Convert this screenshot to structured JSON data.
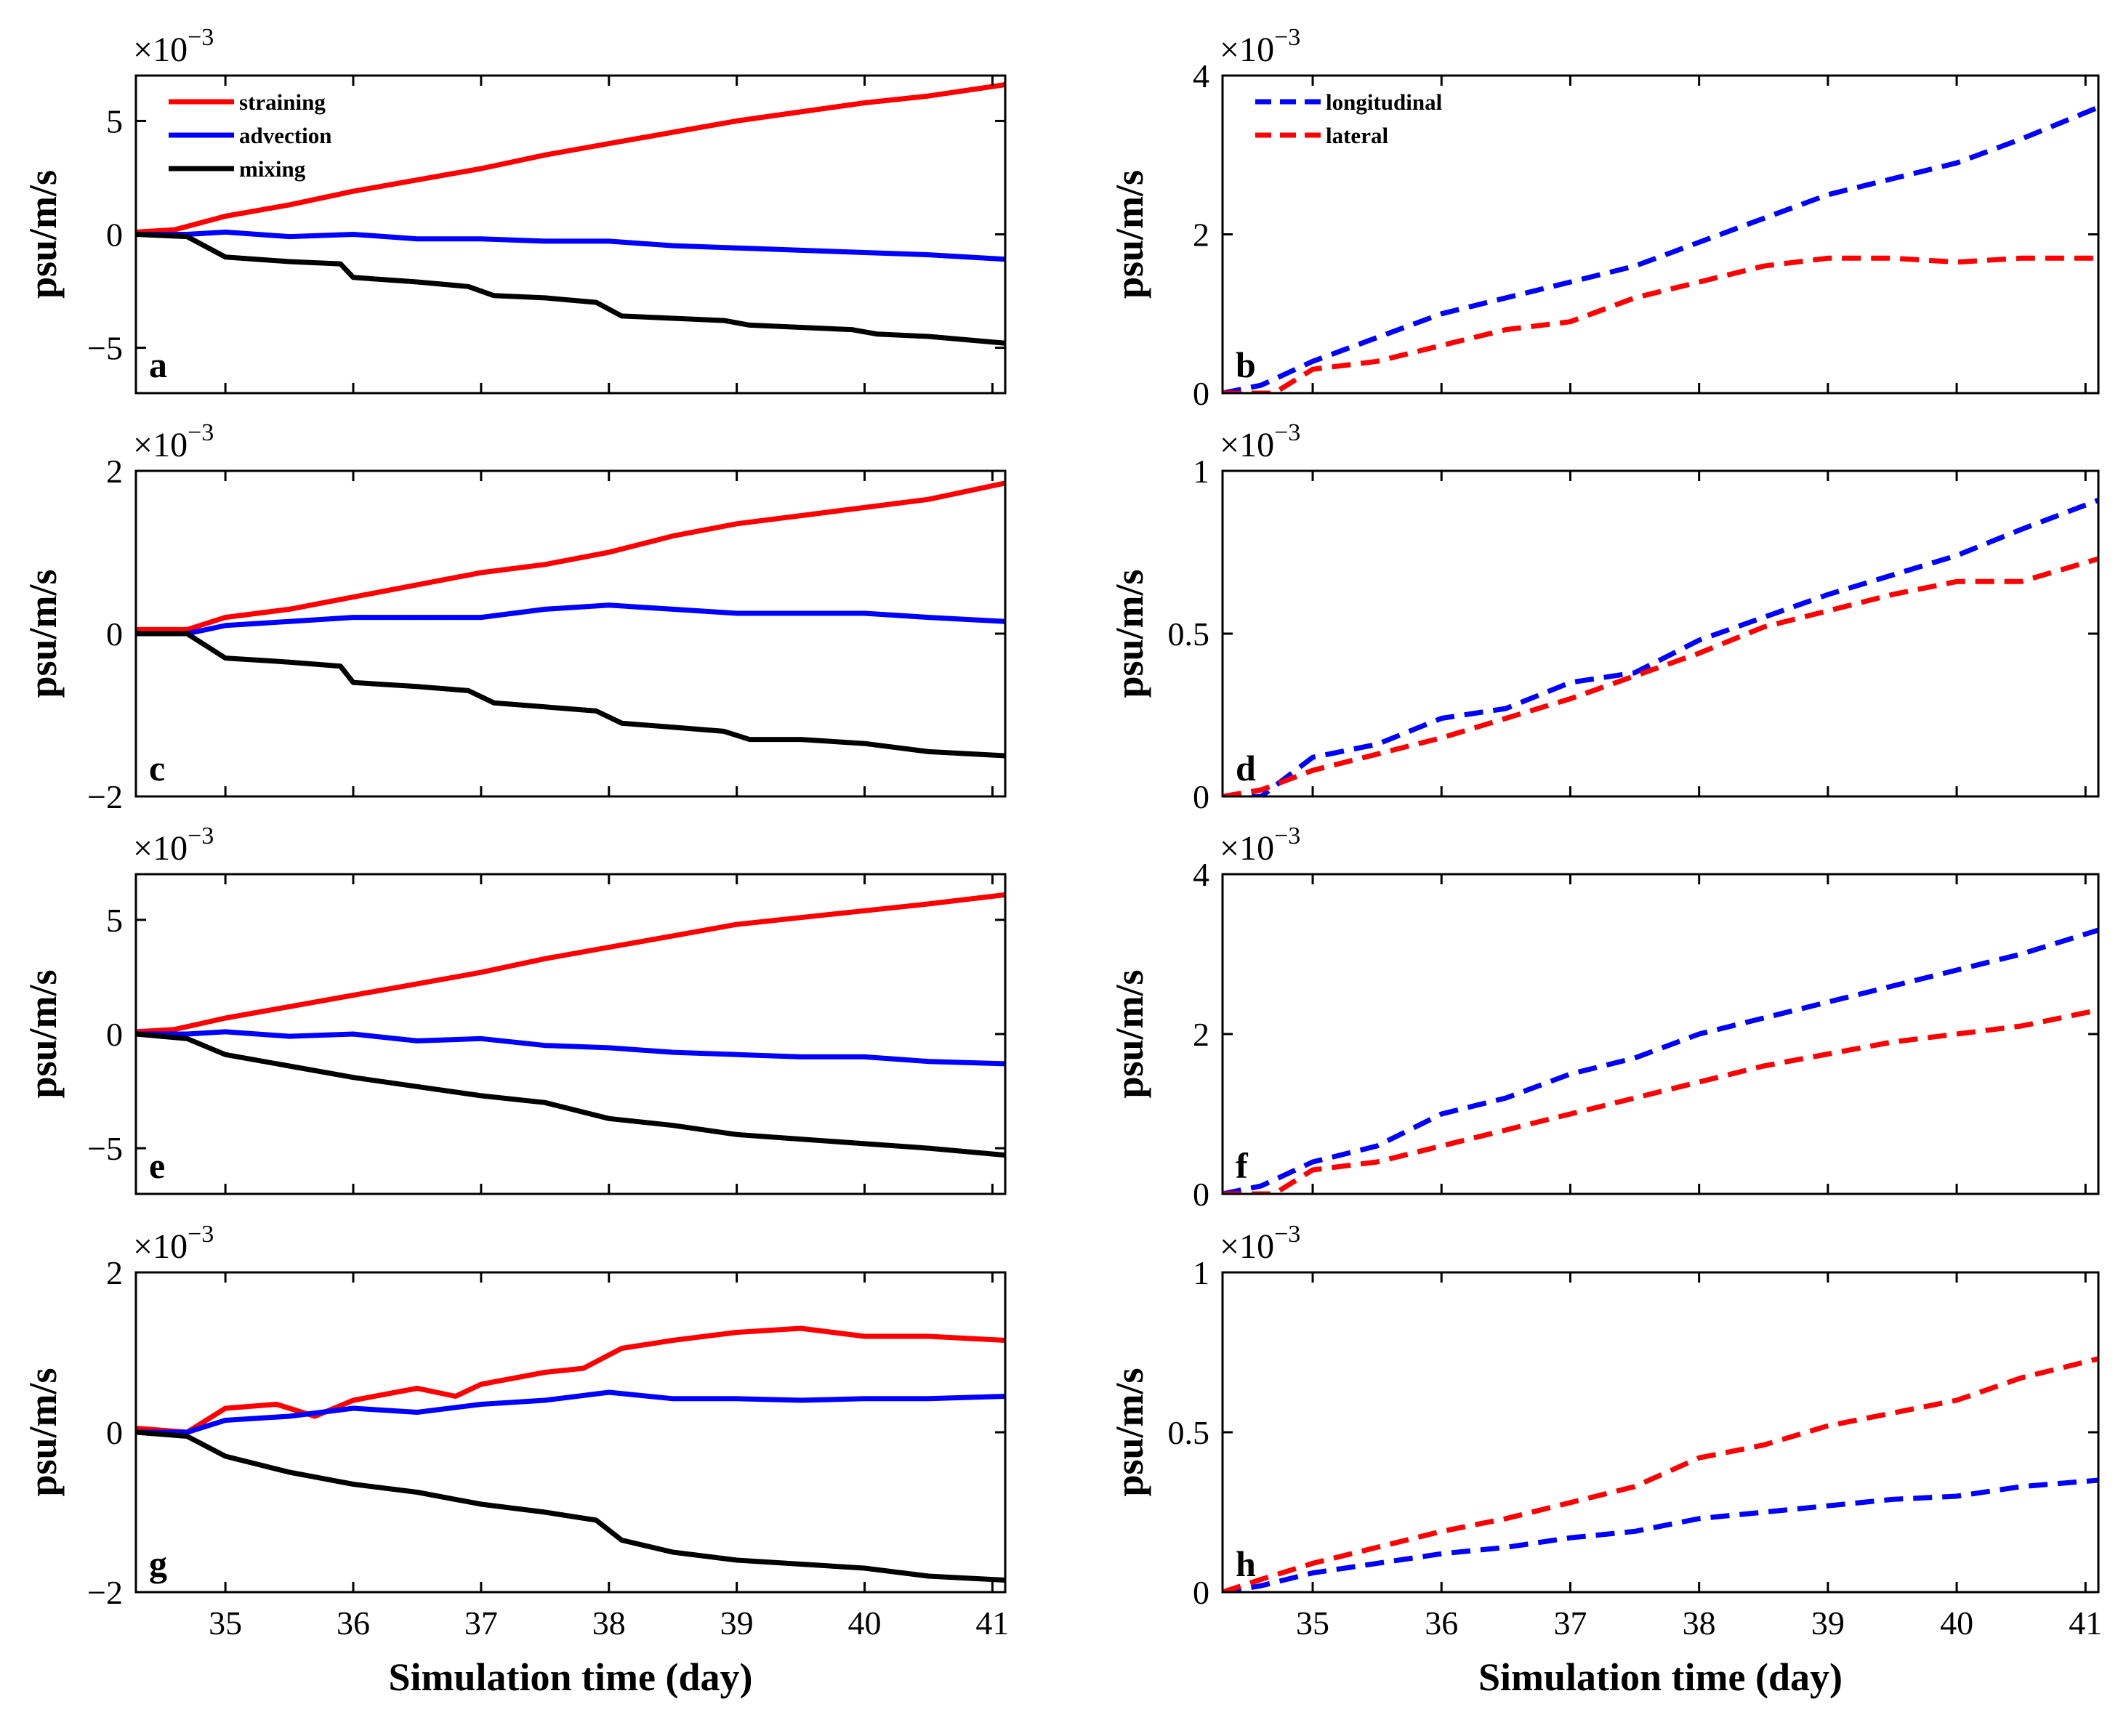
{
  "chart_data": [
    {
      "type": "line",
      "panel": "a",
      "ylabel": "psu/m/s",
      "exponent": "-3",
      "ylim": [
        -7,
        7
      ],
      "yticks": [
        -5,
        0,
        5
      ],
      "xlim": [
        34.3,
        41.1
      ],
      "xticks": [
        35,
        36,
        37,
        38,
        39,
        40,
        41
      ],
      "show_xlabel": false,
      "legend": true,
      "series": [
        {
          "name": "straining",
          "color": "#ff0000",
          "dash": false,
          "x": [
            34.3,
            34.6,
            35.0,
            35.5,
            36.0,
            36.5,
            37.0,
            37.5,
            38.0,
            38.5,
            39.0,
            39.5,
            40.0,
            40.5,
            41.1
          ],
          "y": [
            0.1,
            0.2,
            0.8,
            1.3,
            1.9,
            2.4,
            2.9,
            3.5,
            4.0,
            4.5,
            5.0,
            5.4,
            5.8,
            6.1,
            6.6
          ]
        },
        {
          "name": "advection",
          "color": "#0000ff",
          "dash": false,
          "x": [
            34.3,
            34.7,
            35.0,
            35.5,
            36.0,
            36.5,
            37.0,
            37.5,
            38.0,
            38.5,
            39.0,
            39.5,
            40.0,
            40.5,
            41.1
          ],
          "y": [
            0.0,
            0.0,
            0.1,
            -0.1,
            0.0,
            -0.2,
            -0.2,
            -0.3,
            -0.3,
            -0.5,
            -0.6,
            -0.7,
            -0.8,
            -0.9,
            -1.1
          ]
        },
        {
          "name": "mixing",
          "color": "#000000",
          "dash": false,
          "x": [
            34.3,
            34.7,
            35.0,
            35.5,
            35.9,
            36.0,
            36.5,
            36.9,
            37.1,
            37.5,
            37.9,
            38.1,
            38.5,
            38.9,
            39.1,
            39.5,
            39.9,
            40.1,
            40.5,
            41.1
          ],
          "y": [
            0.0,
            -0.1,
            -1.0,
            -1.2,
            -1.3,
            -1.9,
            -2.1,
            -2.3,
            -2.7,
            -2.8,
            -3.0,
            -3.6,
            -3.7,
            -3.8,
            -4.0,
            -4.1,
            -4.2,
            -4.4,
            -4.5,
            -4.8
          ]
        }
      ]
    },
    {
      "type": "line",
      "panel": "b",
      "ylabel": "psu/m/s",
      "exponent": "-3",
      "ylim": [
        0,
        4
      ],
      "yticks": [
        0,
        2,
        4
      ],
      "xlim": [
        34.3,
        41.1
      ],
      "xticks": [
        35,
        36,
        37,
        38,
        39,
        40,
        41
      ],
      "show_xlabel": false,
      "legend": true,
      "series": [
        {
          "name": "longitudinal",
          "color": "#0000ff",
          "dash": true,
          "x": [
            34.3,
            34.6,
            35.0,
            35.5,
            36.0,
            36.5,
            37.0,
            37.5,
            38.0,
            38.5,
            39.0,
            39.5,
            40.0,
            40.5,
            41.1
          ],
          "y": [
            0.0,
            0.1,
            0.4,
            0.7,
            1.0,
            1.2,
            1.4,
            1.6,
            1.9,
            2.2,
            2.5,
            2.7,
            2.9,
            3.2,
            3.6
          ]
        },
        {
          "name": "lateral",
          "color": "#ff0000",
          "dash": true,
          "x": [
            34.3,
            34.7,
            35.0,
            35.5,
            36.0,
            36.5,
            37.0,
            37.5,
            38.0,
            38.5,
            39.0,
            39.5,
            40.0,
            40.5,
            41.1
          ],
          "y": [
            0.0,
            0.0,
            0.3,
            0.4,
            0.6,
            0.8,
            0.9,
            1.2,
            1.4,
            1.6,
            1.7,
            1.7,
            1.65,
            1.7,
            1.7
          ]
        }
      ]
    },
    {
      "type": "line",
      "panel": "c",
      "ylabel": "psu/m/s",
      "exponent": "-3",
      "ylim": [
        -2,
        2
      ],
      "yticks": [
        -2,
        0,
        2
      ],
      "xlim": [
        34.3,
        41.1
      ],
      "xticks": [
        35,
        36,
        37,
        38,
        39,
        40,
        41
      ],
      "show_xlabel": false,
      "legend": false,
      "series": [
        {
          "name": "straining",
          "color": "#ff0000",
          "dash": false,
          "x": [
            34.3,
            34.7,
            35.0,
            35.5,
            36.0,
            36.5,
            37.0,
            37.5,
            38.0,
            38.5,
            39.0,
            39.5,
            40.0,
            40.5,
            41.1
          ],
          "y": [
            0.05,
            0.05,
            0.2,
            0.3,
            0.45,
            0.6,
            0.75,
            0.85,
            1.0,
            1.2,
            1.35,
            1.45,
            1.55,
            1.65,
            1.85
          ]
        },
        {
          "name": "advection",
          "color": "#0000ff",
          "dash": false,
          "x": [
            34.3,
            34.7,
            35.0,
            35.5,
            36.0,
            36.5,
            37.0,
            37.5,
            38.0,
            38.5,
            39.0,
            39.5,
            40.0,
            40.5,
            41.1
          ],
          "y": [
            0.0,
            0.0,
            0.1,
            0.15,
            0.2,
            0.2,
            0.2,
            0.3,
            0.35,
            0.3,
            0.25,
            0.25,
            0.25,
            0.2,
            0.15
          ]
        },
        {
          "name": "mixing",
          "color": "#000000",
          "dash": false,
          "x": [
            34.3,
            34.7,
            35.0,
            35.5,
            35.9,
            36.0,
            36.5,
            36.9,
            37.1,
            37.5,
            37.9,
            38.1,
            38.5,
            38.9,
            39.1,
            39.5,
            40.0,
            40.5,
            41.1
          ],
          "y": [
            0.0,
            0.0,
            -0.3,
            -0.35,
            -0.4,
            -0.6,
            -0.65,
            -0.7,
            -0.85,
            -0.9,
            -0.95,
            -1.1,
            -1.15,
            -1.2,
            -1.3,
            -1.3,
            -1.35,
            -1.45,
            -1.5
          ]
        }
      ]
    },
    {
      "type": "line",
      "panel": "d",
      "ylabel": "psu/m/s",
      "exponent": "-3",
      "ylim": [
        0,
        1
      ],
      "yticks": [
        0,
        0.5,
        1
      ],
      "xlim": [
        34.3,
        41.1
      ],
      "xticks": [
        35,
        36,
        37,
        38,
        39,
        40,
        41
      ],
      "show_xlabel": false,
      "legend": false,
      "series": [
        {
          "name": "longitudinal",
          "color": "#0000ff",
          "dash": true,
          "x": [
            34.3,
            34.6,
            35.0,
            35.5,
            36.0,
            36.5,
            37.0,
            37.5,
            38.0,
            38.5,
            39.0,
            39.5,
            40.0,
            40.5,
            41.1
          ],
          "y": [
            0.0,
            0.0,
            0.12,
            0.16,
            0.24,
            0.27,
            0.35,
            0.38,
            0.48,
            0.55,
            0.62,
            0.68,
            0.74,
            0.82,
            0.91
          ]
        },
        {
          "name": "lateral",
          "color": "#ff0000",
          "dash": true,
          "x": [
            34.3,
            34.6,
            35.0,
            35.5,
            36.0,
            36.5,
            37.0,
            37.5,
            38.0,
            38.5,
            39.0,
            39.5,
            40.0,
            40.5,
            41.1
          ],
          "y": [
            0.0,
            0.02,
            0.08,
            0.13,
            0.18,
            0.24,
            0.3,
            0.37,
            0.44,
            0.52,
            0.57,
            0.62,
            0.66,
            0.66,
            0.73
          ]
        }
      ]
    },
    {
      "type": "line",
      "panel": "e",
      "ylabel": "psu/m/s",
      "exponent": "-3",
      "ylim": [
        -7,
        7
      ],
      "yticks": [
        -5,
        0,
        5
      ],
      "xlim": [
        34.3,
        41.1
      ],
      "xticks": [
        35,
        36,
        37,
        38,
        39,
        40,
        41
      ],
      "show_xlabel": false,
      "legend": false,
      "series": [
        {
          "name": "straining",
          "color": "#ff0000",
          "dash": false,
          "x": [
            34.3,
            34.6,
            35.0,
            35.5,
            36.0,
            36.5,
            37.0,
            37.5,
            38.0,
            38.5,
            39.0,
            39.5,
            40.0,
            40.5,
            41.1
          ],
          "y": [
            0.1,
            0.2,
            0.7,
            1.2,
            1.7,
            2.2,
            2.7,
            3.3,
            3.8,
            4.3,
            4.8,
            5.1,
            5.4,
            5.7,
            6.1
          ]
        },
        {
          "name": "advection",
          "color": "#0000ff",
          "dash": false,
          "x": [
            34.3,
            34.7,
            35.0,
            35.5,
            36.0,
            36.5,
            37.0,
            37.5,
            38.0,
            38.5,
            39.0,
            39.5,
            40.0,
            40.5,
            41.1
          ],
          "y": [
            0.0,
            0.0,
            0.1,
            -0.1,
            0.0,
            -0.3,
            -0.2,
            -0.5,
            -0.6,
            -0.8,
            -0.9,
            -1.0,
            -1.0,
            -1.2,
            -1.3
          ]
        },
        {
          "name": "mixing",
          "color": "#000000",
          "dash": false,
          "x": [
            34.3,
            34.7,
            35.0,
            35.5,
            36.0,
            36.5,
            37.0,
            37.5,
            38.0,
            38.5,
            39.0,
            39.5,
            40.0,
            40.5,
            41.1
          ],
          "y": [
            0.0,
            -0.2,
            -0.9,
            -1.4,
            -1.9,
            -2.3,
            -2.7,
            -3.0,
            -3.7,
            -4.0,
            -4.4,
            -4.6,
            -4.8,
            -5.0,
            -5.3
          ]
        }
      ]
    },
    {
      "type": "line",
      "panel": "f",
      "ylabel": "psu/m/s",
      "exponent": "-3",
      "ylim": [
        0,
        4
      ],
      "yticks": [
        0,
        2,
        4
      ],
      "xlim": [
        34.3,
        41.1
      ],
      "xticks": [
        35,
        36,
        37,
        38,
        39,
        40,
        41
      ],
      "show_xlabel": false,
      "legend": false,
      "series": [
        {
          "name": "longitudinal",
          "color": "#0000ff",
          "dash": true,
          "x": [
            34.3,
            34.6,
            35.0,
            35.5,
            36.0,
            36.5,
            37.0,
            37.5,
            38.0,
            38.5,
            39.0,
            39.5,
            40.0,
            40.5,
            41.1
          ],
          "y": [
            0.0,
            0.1,
            0.4,
            0.6,
            1.0,
            1.2,
            1.5,
            1.7,
            2.0,
            2.2,
            2.4,
            2.6,
            2.8,
            3.0,
            3.3
          ]
        },
        {
          "name": "lateral",
          "color": "#ff0000",
          "dash": true,
          "x": [
            34.3,
            34.7,
            35.0,
            35.5,
            36.0,
            36.5,
            37.0,
            37.5,
            38.0,
            38.5,
            39.0,
            39.5,
            40.0,
            40.5,
            41.1
          ],
          "y": [
            0.0,
            0.0,
            0.3,
            0.4,
            0.6,
            0.8,
            1.0,
            1.2,
            1.4,
            1.6,
            1.75,
            1.9,
            2.0,
            2.1,
            2.3
          ]
        }
      ]
    },
    {
      "type": "line",
      "panel": "g",
      "ylabel": "psu/m/s",
      "exponent": "-3",
      "ylim": [
        -2,
        2
      ],
      "yticks": [
        -2,
        0,
        2
      ],
      "xlim": [
        34.3,
        41.1
      ],
      "xticks": [
        35,
        36,
        37,
        38,
        39,
        40,
        41
      ],
      "show_xlabel": true,
      "xlabel": "Simulation time (day)",
      "legend": false,
      "series": [
        {
          "name": "straining",
          "color": "#ff0000",
          "dash": false,
          "x": [
            34.3,
            34.7,
            35.0,
            35.4,
            35.7,
            36.0,
            36.5,
            36.8,
            37.0,
            37.5,
            37.8,
            38.1,
            38.5,
            39.0,
            39.5,
            40.0,
            40.5,
            41.1
          ],
          "y": [
            0.05,
            0.0,
            0.3,
            0.35,
            0.2,
            0.4,
            0.55,
            0.45,
            0.6,
            0.75,
            0.8,
            1.05,
            1.15,
            1.25,
            1.3,
            1.2,
            1.2,
            1.15
          ]
        },
        {
          "name": "advection",
          "color": "#0000ff",
          "dash": false,
          "x": [
            34.3,
            34.7,
            35.0,
            35.5,
            36.0,
            36.5,
            37.0,
            37.5,
            38.0,
            38.5,
            39.0,
            39.5,
            40.0,
            40.5,
            41.1
          ],
          "y": [
            0.0,
            0.0,
            0.15,
            0.2,
            0.3,
            0.25,
            0.35,
            0.4,
            0.5,
            0.42,
            0.42,
            0.4,
            0.42,
            0.42,
            0.45
          ]
        },
        {
          "name": "mixing",
          "color": "#000000",
          "dash": false,
          "x": [
            34.3,
            34.7,
            35.0,
            35.5,
            36.0,
            36.5,
            37.0,
            37.5,
            37.9,
            38.1,
            38.5,
            39.0,
            39.5,
            40.0,
            40.5,
            41.1
          ],
          "y": [
            0.0,
            -0.05,
            -0.3,
            -0.5,
            -0.65,
            -0.75,
            -0.9,
            -1.0,
            -1.1,
            -1.35,
            -1.5,
            -1.6,
            -1.65,
            -1.7,
            -1.8,
            -1.85
          ]
        }
      ]
    },
    {
      "type": "line",
      "panel": "h",
      "ylabel": "psu/m/s",
      "exponent": "-3",
      "ylim": [
        0,
        1
      ],
      "yticks": [
        0,
        0.5,
        1
      ],
      "xlim": [
        34.3,
        41.1
      ],
      "xticks": [
        35,
        36,
        37,
        38,
        39,
        40,
        41
      ],
      "show_xlabel": true,
      "xlabel": "Simulation time (day)",
      "legend": false,
      "series": [
        {
          "name": "longitudinal",
          "color": "#0000ff",
          "dash": true,
          "x": [
            34.3,
            34.6,
            35.0,
            35.5,
            36.0,
            36.5,
            37.0,
            37.5,
            38.0,
            38.5,
            39.0,
            39.5,
            40.0,
            40.5,
            41.1
          ],
          "y": [
            0.0,
            0.02,
            0.06,
            0.09,
            0.12,
            0.14,
            0.17,
            0.19,
            0.23,
            0.25,
            0.27,
            0.29,
            0.3,
            0.33,
            0.35
          ]
        },
        {
          "name": "lateral",
          "color": "#ff0000",
          "dash": true,
          "x": [
            34.3,
            34.6,
            35.0,
            35.5,
            36.0,
            36.5,
            37.0,
            37.5,
            38.0,
            38.5,
            39.0,
            39.5,
            40.0,
            40.5,
            41.1
          ],
          "y": [
            0.0,
            0.04,
            0.09,
            0.14,
            0.19,
            0.23,
            0.28,
            0.33,
            0.42,
            0.46,
            0.52,
            0.56,
            0.6,
            0.67,
            0.73
          ]
        }
      ]
    }
  ]
}
